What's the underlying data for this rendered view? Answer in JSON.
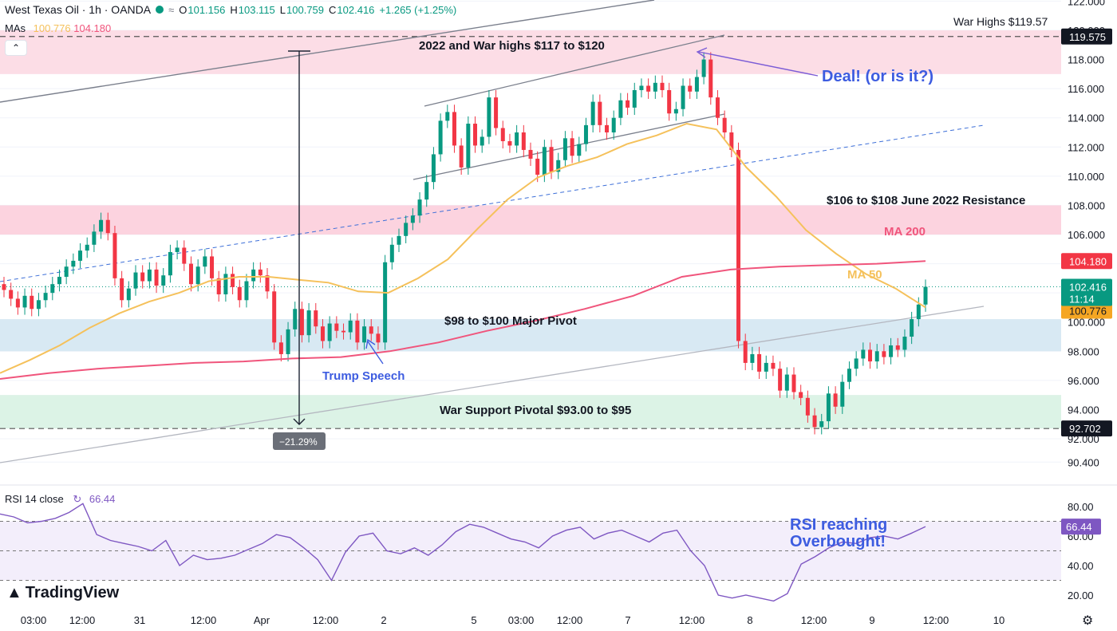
{
  "header": {
    "symbol": "West Texas Oil · 1h · OANDA",
    "tag": "≈",
    "ohlc": {
      "o_label": "O",
      "o": "101.156",
      "h_label": "H",
      "h": "103.115",
      "l_label": "L",
      "l": "100.759",
      "c_label": "C",
      "c": "102.416",
      "change": "+1.265 (+1.25%)"
    },
    "mas_label": "MAs",
    "ma50_value": "100.776",
    "ma200_value": "104.180",
    "collapse_icon": "chevron-up-icon"
  },
  "rsi_header": {
    "label": "RSI 14 close",
    "value": "66.44"
  },
  "brand": "TradingView",
  "colors": {
    "up": "#089981",
    "down": "#f23645",
    "ma50": "#f5c15b",
    "ma200": "#f0557c",
    "rsi": "#7e57c2",
    "annotation_blue": "#3d5ce0"
  },
  "chart_data": {
    "type": "candlestick",
    "instrument": "West Texas Oil",
    "interval": "1h",
    "source": "OANDA",
    "price_axis_ticks": [
      "122.000",
      "120.000",
      "118.000",
      "116.000",
      "114.000",
      "112.000",
      "110.000",
      "108.000",
      "106.000",
      "104.000",
      "102.000",
      "100.000",
      "98.000",
      "96.000",
      "94.000",
      "92.000",
      "90.400"
    ],
    "price_ticks_num": [
      122,
      120,
      118,
      116,
      114,
      112,
      110,
      108,
      106,
      104,
      102,
      100,
      98,
      96,
      94,
      92,
      90.4
    ],
    "time_axis_ticks": [
      "03:00",
      "12:00",
      "31",
      "12:00",
      "Apr",
      "12:00",
      "2",
      "5",
      "03:00",
      "12:00",
      "7",
      "12:00",
      "8",
      "12:00",
      "9",
      "12:00",
      "10"
    ],
    "price_labels": {
      "war_high": "119.575",
      "ma200": "104.180",
      "last": "102.416",
      "countdown": "11:14",
      "ma50": "100.776",
      "support": "92.702"
    },
    "series_close": [
      102.2,
      101.6,
      101.0,
      101.8,
      100.9,
      101.5,
      102.0,
      102.6,
      103.1,
      103.8,
      104.2,
      104.9,
      105.3,
      106.2,
      107.0,
      106.1,
      103.0,
      101.5,
      102.3,
      103.4,
      102.8,
      103.6,
      102.5,
      103.2,
      104.8,
      105.1,
      104.0,
      102.6,
      103.8,
      104.5,
      103.0,
      101.9,
      103.3,
      102.4,
      101.5,
      102.8,
      103.6,
      103.2,
      102.1,
      98.6,
      97.8,
      99.5,
      100.9,
      99.1,
      100.8,
      99.7,
      98.7,
      99.9,
      99.4,
      99.3,
      100.1,
      98.6,
      99.7,
      99.2,
      98.6,
      104.1,
      105.3,
      105.9,
      106.8,
      107.3,
      108.4,
      109.6,
      111.5,
      113.8,
      114.4,
      112.1,
      110.6,
      113.6,
      112.1,
      112.7,
      115.4,
      113.3,
      112.4,
      112.1,
      113.0,
      111.8,
      111.2,
      110.1,
      112.0,
      110.3,
      111.1,
      112.6,
      111.4,
      112.2,
      113.5,
      115.1,
      113.5,
      113.0,
      114.0,
      115.2,
      114.7,
      115.9,
      116.2,
      115.8,
      116.4,
      115.9,
      114.3,
      114.6,
      116.2,
      115.8,
      116.8,
      118.0,
      115.4,
      114.0,
      113.0,
      111.8,
      98.7,
      97.2,
      97.8,
      96.6,
      97.2,
      96.8,
      95.3,
      96.4,
      95.2,
      94.8,
      93.6,
      92.8,
      93.2,
      95.1,
      94.2,
      95.9,
      96.8,
      97.5,
      98.1,
      97.3,
      98.0,
      97.6,
      98.4,
      98.1,
      99.0,
      100.2,
      101.2,
      102.416
    ],
    "ma50": [
      96.5,
      97.4,
      98.4,
      99.6,
      100.6,
      101.4,
      102.0,
      102.8,
      103.1,
      103.1,
      102.9,
      102.7,
      102.1,
      102.0,
      103.0,
      104.3,
      106.4,
      108.4,
      109.9,
      110.7,
      111.3,
      112.2,
      112.8,
      113.6,
      113.2,
      110.6,
      108.6,
      106.3,
      104.7,
      103.3,
      102.3,
      101.0
    ],
    "ma200": [
      96.1,
      96.5,
      96.8,
      97.0,
      97.2,
      97.3,
      97.5,
      97.6,
      98.0,
      98.6,
      99.4,
      100.1,
      100.9,
      101.8,
      103.1,
      103.6,
      103.8,
      103.9,
      104.0,
      104.18
    ],
    "rsi_series": [
      75,
      73,
      69,
      70,
      72,
      76,
      82,
      61,
      57,
      55,
      53,
      50,
      57,
      40,
      47,
      44,
      45,
      47,
      51,
      55,
      61,
      59,
      52,
      44,
      30,
      49,
      60,
      62,
      50,
      48,
      52,
      47,
      54,
      63,
      68,
      66,
      62,
      58,
      56,
      52,
      60,
      64,
      66,
      58,
      62,
      64,
      60,
      56,
      62,
      64,
      50,
      40,
      20,
      18,
      20,
      18,
      16,
      21,
      41,
      46,
      52,
      56,
      55,
      59,
      60,
      58,
      62,
      66.44
    ],
    "rsi_ticks": [
      "80.00",
      "60.00",
      "40.00",
      "20.00"
    ],
    "rsi_ticks_num": [
      80,
      60,
      40,
      20
    ],
    "rsi_last": "66.44",
    "annotations": {
      "war_highs": "War Highs $119.57",
      "zone_2022": "2022 and War highs $117 to $120",
      "deal": "Deal! (or is it?)",
      "resistance": "$106 to $108 June 2022 Resistance",
      "ma200": "MA 200",
      "ma50": "MA 50",
      "pivot": "$98 to $100 Major Pivot",
      "trump": "Trump Speech",
      "support": "War Support Pivotal $93.00 to $95",
      "drop": "−21.29%",
      "rsi_note_1": "RSI reaching",
      "rsi_note_2": "Overbought!"
    },
    "zones": {
      "war_high_zone": [
        117,
        120
      ],
      "resistance_zone": [
        106,
        108
      ],
      "pivot_zone": [
        98,
        100.2
      ],
      "support_zone": [
        92.7,
        95
      ]
    },
    "levels": {
      "war_high": 119.575,
      "support": 92.702
    }
  }
}
